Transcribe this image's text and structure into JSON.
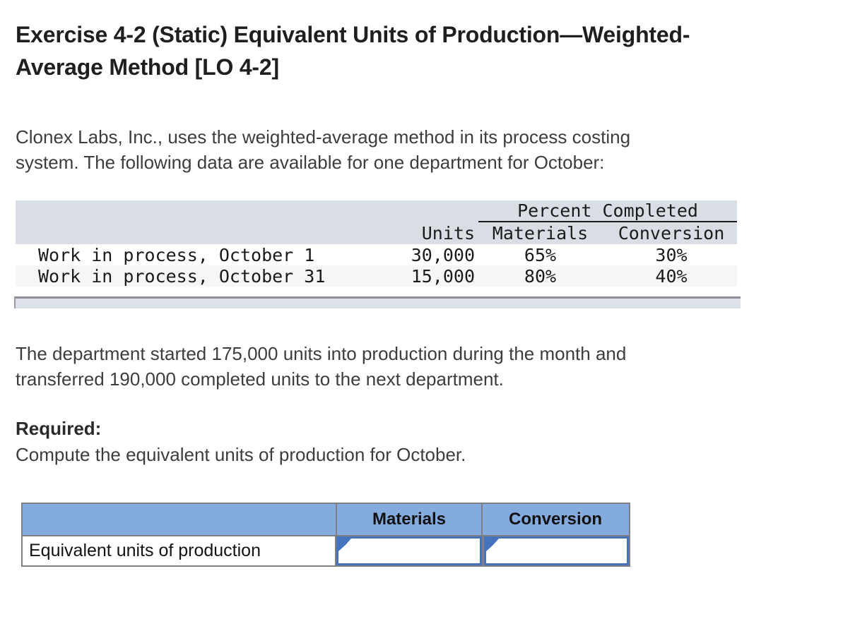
{
  "header": {
    "title_line1": "Exercise 4-2 (Static) Equivalent Units of Production—Weighted-",
    "title_line2": "Average Method [LO 4-2]"
  },
  "intro": {
    "line1": "Clonex Labs, Inc., uses the weighted-average method in its process costing",
    "line2": "system. The following data are available for one department for October:"
  },
  "data_table": {
    "group_header": "Percent Completed",
    "columns": {
      "units": "Units",
      "materials": "Materials",
      "conversion": "Conversion"
    },
    "rows": [
      {
        "label": "Work in process, October 1",
        "units": "30,000",
        "materials": "65%",
        "conversion": "30%"
      },
      {
        "label": "Work in process, October 31",
        "units": "15,000",
        "materials": "80%",
        "conversion": "40%"
      }
    ]
  },
  "body_text": {
    "line1": "The department started 175,000 units into production during the month and",
    "line2": "transferred 190,000 completed units to the next department."
  },
  "required": {
    "label": "Required:",
    "instruction": "Compute the equivalent units of production for October."
  },
  "answer_table": {
    "columns": {
      "materials": "Materials",
      "conversion": "Conversion"
    },
    "row_label": "Equivalent units of production",
    "materials_value": "",
    "conversion_value": ""
  },
  "colors": {
    "data_table_header_bg": "#d9dde4",
    "data_table_alt_row_bg": "#f5f6f7",
    "answer_header_bg": "#84abde",
    "input_border": "#4673be",
    "table_border_gray": "#7f7f7f"
  }
}
